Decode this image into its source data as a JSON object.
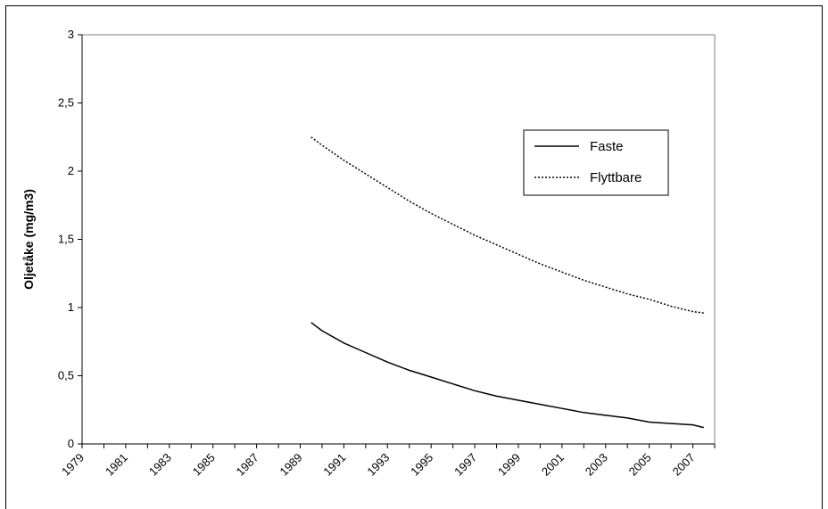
{
  "chart_data": {
    "type": "line",
    "title": "",
    "xlabel": "",
    "ylabel": "Oljetåke (mg/m3)",
    "ylim": [
      0,
      3
    ],
    "yticks": [
      "0",
      "0,5",
      "1",
      "1,5",
      "2",
      "2,5",
      "3"
    ],
    "xticks": [
      "1979",
      "1981",
      "1983",
      "1985",
      "1987",
      "1989",
      "1991",
      "1993",
      "1995",
      "1997",
      "1999",
      "2001",
      "2003",
      "2005",
      "2007"
    ],
    "x_range": [
      1979,
      2008
    ],
    "grid": false,
    "legend_placement": "top-right",
    "series": [
      {
        "name": "Faste",
        "style": "solid",
        "color": "#000000",
        "x": [
          1989.5,
          1990,
          1991,
          1992,
          1993,
          1994,
          1995,
          1996,
          1997,
          1998,
          1999,
          2000,
          2001,
          2002,
          2003,
          2004,
          2005,
          2006,
          2007,
          2007.5
        ],
        "values": [
          0.89,
          0.83,
          0.74,
          0.67,
          0.6,
          0.54,
          0.49,
          0.44,
          0.39,
          0.35,
          0.32,
          0.29,
          0.26,
          0.23,
          0.21,
          0.19,
          0.16,
          0.15,
          0.14,
          0.12
        ]
      },
      {
        "name": "Flyttbare",
        "style": "dotted",
        "color": "#000000",
        "x": [
          1989.5,
          1990,
          1991,
          1992,
          1993,
          1994,
          1995,
          1996,
          1997,
          1998,
          1999,
          2000,
          2001,
          2002,
          2003,
          2004,
          2005,
          2006,
          2007,
          2007.5
        ],
        "values": [
          2.25,
          2.19,
          2.08,
          1.98,
          1.88,
          1.78,
          1.69,
          1.61,
          1.53,
          1.46,
          1.39,
          1.32,
          1.26,
          1.2,
          1.15,
          1.1,
          1.06,
          1.01,
          0.97,
          0.96
        ]
      }
    ]
  }
}
